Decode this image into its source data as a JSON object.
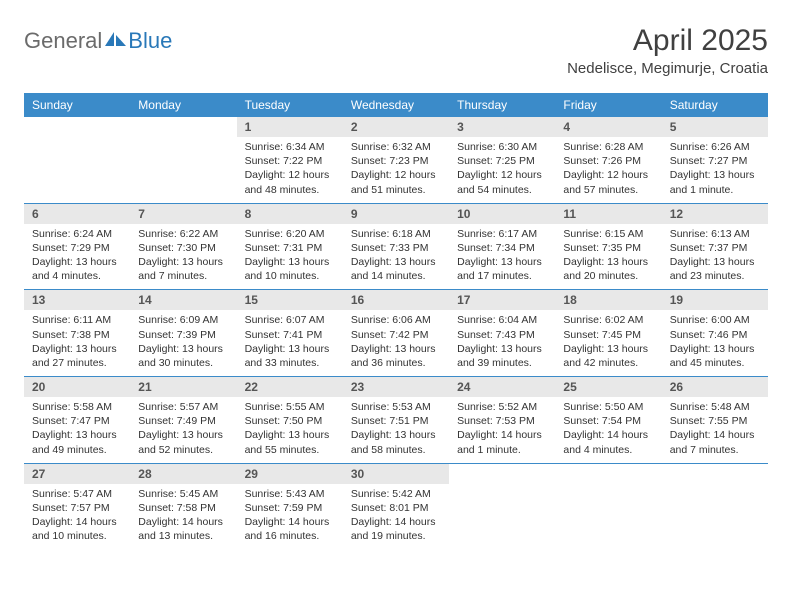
{
  "logo": {
    "word1": "General",
    "word2": "Blue"
  },
  "title": "April 2025",
  "location": "Nedelisce, Megimurje, Croatia",
  "colors": {
    "header_bg": "#3b8bc9",
    "header_text": "#ffffff",
    "daynum_bg": "#e8e8e8",
    "row_border": "#3b8bc9",
    "logo_gray": "#6b6b6b",
    "logo_blue": "#2978b8"
  },
  "day_headers": [
    "Sunday",
    "Monday",
    "Tuesday",
    "Wednesday",
    "Thursday",
    "Friday",
    "Saturday"
  ],
  "weeks": [
    [
      null,
      null,
      {
        "n": "1",
        "sr": "Sunrise: 6:34 AM",
        "ss": "Sunset: 7:22 PM",
        "dl": "Daylight: 12 hours and 48 minutes."
      },
      {
        "n": "2",
        "sr": "Sunrise: 6:32 AM",
        "ss": "Sunset: 7:23 PM",
        "dl": "Daylight: 12 hours and 51 minutes."
      },
      {
        "n": "3",
        "sr": "Sunrise: 6:30 AM",
        "ss": "Sunset: 7:25 PM",
        "dl": "Daylight: 12 hours and 54 minutes."
      },
      {
        "n": "4",
        "sr": "Sunrise: 6:28 AM",
        "ss": "Sunset: 7:26 PM",
        "dl": "Daylight: 12 hours and 57 minutes."
      },
      {
        "n": "5",
        "sr": "Sunrise: 6:26 AM",
        "ss": "Sunset: 7:27 PM",
        "dl": "Daylight: 13 hours and 1 minute."
      }
    ],
    [
      {
        "n": "6",
        "sr": "Sunrise: 6:24 AM",
        "ss": "Sunset: 7:29 PM",
        "dl": "Daylight: 13 hours and 4 minutes."
      },
      {
        "n": "7",
        "sr": "Sunrise: 6:22 AM",
        "ss": "Sunset: 7:30 PM",
        "dl": "Daylight: 13 hours and 7 minutes."
      },
      {
        "n": "8",
        "sr": "Sunrise: 6:20 AM",
        "ss": "Sunset: 7:31 PM",
        "dl": "Daylight: 13 hours and 10 minutes."
      },
      {
        "n": "9",
        "sr": "Sunrise: 6:18 AM",
        "ss": "Sunset: 7:33 PM",
        "dl": "Daylight: 13 hours and 14 minutes."
      },
      {
        "n": "10",
        "sr": "Sunrise: 6:17 AM",
        "ss": "Sunset: 7:34 PM",
        "dl": "Daylight: 13 hours and 17 minutes."
      },
      {
        "n": "11",
        "sr": "Sunrise: 6:15 AM",
        "ss": "Sunset: 7:35 PM",
        "dl": "Daylight: 13 hours and 20 minutes."
      },
      {
        "n": "12",
        "sr": "Sunrise: 6:13 AM",
        "ss": "Sunset: 7:37 PM",
        "dl": "Daylight: 13 hours and 23 minutes."
      }
    ],
    [
      {
        "n": "13",
        "sr": "Sunrise: 6:11 AM",
        "ss": "Sunset: 7:38 PM",
        "dl": "Daylight: 13 hours and 27 minutes."
      },
      {
        "n": "14",
        "sr": "Sunrise: 6:09 AM",
        "ss": "Sunset: 7:39 PM",
        "dl": "Daylight: 13 hours and 30 minutes."
      },
      {
        "n": "15",
        "sr": "Sunrise: 6:07 AM",
        "ss": "Sunset: 7:41 PM",
        "dl": "Daylight: 13 hours and 33 minutes."
      },
      {
        "n": "16",
        "sr": "Sunrise: 6:06 AM",
        "ss": "Sunset: 7:42 PM",
        "dl": "Daylight: 13 hours and 36 minutes."
      },
      {
        "n": "17",
        "sr": "Sunrise: 6:04 AM",
        "ss": "Sunset: 7:43 PM",
        "dl": "Daylight: 13 hours and 39 minutes."
      },
      {
        "n": "18",
        "sr": "Sunrise: 6:02 AM",
        "ss": "Sunset: 7:45 PM",
        "dl": "Daylight: 13 hours and 42 minutes."
      },
      {
        "n": "19",
        "sr": "Sunrise: 6:00 AM",
        "ss": "Sunset: 7:46 PM",
        "dl": "Daylight: 13 hours and 45 minutes."
      }
    ],
    [
      {
        "n": "20",
        "sr": "Sunrise: 5:58 AM",
        "ss": "Sunset: 7:47 PM",
        "dl": "Daylight: 13 hours and 49 minutes."
      },
      {
        "n": "21",
        "sr": "Sunrise: 5:57 AM",
        "ss": "Sunset: 7:49 PM",
        "dl": "Daylight: 13 hours and 52 minutes."
      },
      {
        "n": "22",
        "sr": "Sunrise: 5:55 AM",
        "ss": "Sunset: 7:50 PM",
        "dl": "Daylight: 13 hours and 55 minutes."
      },
      {
        "n": "23",
        "sr": "Sunrise: 5:53 AM",
        "ss": "Sunset: 7:51 PM",
        "dl": "Daylight: 13 hours and 58 minutes."
      },
      {
        "n": "24",
        "sr": "Sunrise: 5:52 AM",
        "ss": "Sunset: 7:53 PM",
        "dl": "Daylight: 14 hours and 1 minute."
      },
      {
        "n": "25",
        "sr": "Sunrise: 5:50 AM",
        "ss": "Sunset: 7:54 PM",
        "dl": "Daylight: 14 hours and 4 minutes."
      },
      {
        "n": "26",
        "sr": "Sunrise: 5:48 AM",
        "ss": "Sunset: 7:55 PM",
        "dl": "Daylight: 14 hours and 7 minutes."
      }
    ],
    [
      {
        "n": "27",
        "sr": "Sunrise: 5:47 AM",
        "ss": "Sunset: 7:57 PM",
        "dl": "Daylight: 14 hours and 10 minutes."
      },
      {
        "n": "28",
        "sr": "Sunrise: 5:45 AM",
        "ss": "Sunset: 7:58 PM",
        "dl": "Daylight: 14 hours and 13 minutes."
      },
      {
        "n": "29",
        "sr": "Sunrise: 5:43 AM",
        "ss": "Sunset: 7:59 PM",
        "dl": "Daylight: 14 hours and 16 minutes."
      },
      {
        "n": "30",
        "sr": "Sunrise: 5:42 AM",
        "ss": "Sunset: 8:01 PM",
        "dl": "Daylight: 14 hours and 19 minutes."
      },
      null,
      null,
      null
    ]
  ]
}
